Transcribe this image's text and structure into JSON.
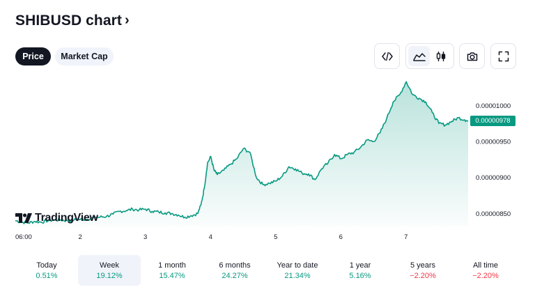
{
  "header": {
    "title": "SHIBUSD chart",
    "chevron_icon": "chevron-right-icon"
  },
  "tabs": [
    {
      "label": "Price",
      "active": true
    },
    {
      "label": "Market Cap",
      "active": false
    }
  ],
  "toolbar": {
    "embed_icon": "code-brackets-icon",
    "area_chart_icon": "area-chart-icon",
    "candles_icon": "candlestick-icon",
    "snapshot_icon": "camera-icon",
    "fullscreen_icon": "fullscreen-icon",
    "active_chart_style": "area"
  },
  "brand": {
    "name": "TradingView"
  },
  "colors": {
    "line": "#089981",
    "badge": "#089981",
    "positive": "#089981",
    "negative": "#f23645"
  },
  "chart_data": {
    "type": "area",
    "current_price_label": "0.00000978",
    "y_ticks": [
      "0.00001000",
      "0.00000950",
      "0.00000900",
      "0.00000850"
    ],
    "y_tick_values": [
      1e-05,
      9.5e-06,
      9e-06,
      8.5e-06
    ],
    "ylim": [
      8.32e-06,
      1.04e-05
    ],
    "x_ticks": [
      "06:00",
      "2",
      "3",
      "4",
      "5",
      "6",
      "7"
    ],
    "x_tick_values": [
      0.25,
      1,
      2,
      3,
      4,
      5,
      6
    ],
    "xlim": [
      0.0,
      6.95
    ],
    "series": [
      {
        "x": [
          0.0,
          0.1,
          0.2,
          0.3,
          0.4,
          0.5,
          0.6,
          0.7,
          0.8,
          0.9,
          1.0,
          1.1,
          1.2,
          1.3,
          1.4,
          1.5,
          1.6,
          1.7,
          1.8,
          1.9,
          2.0,
          2.1,
          2.2,
          2.3,
          2.4,
          2.5,
          2.6,
          2.7,
          2.8,
          2.85,
          2.9,
          2.95,
          3.0,
          3.05,
          3.1,
          3.2,
          3.3,
          3.4,
          3.5,
          3.6,
          3.7,
          3.8,
          3.9,
          4.0,
          4.1,
          4.2,
          4.3,
          4.4,
          4.5,
          4.6,
          4.7,
          4.8,
          4.9,
          5.0,
          5.1,
          5.2,
          5.3,
          5.4,
          5.5,
          5.6,
          5.7,
          5.8,
          5.9,
          6.0,
          6.1,
          6.2,
          6.3,
          6.4,
          6.5,
          6.6,
          6.7,
          6.8,
          6.9,
          6.95
        ],
        "values": [
          8.4e-06,
          8.38e-06,
          8.37e-06,
          8.39e-06,
          8.38e-06,
          8.4e-06,
          8.41e-06,
          8.41e-06,
          8.4e-06,
          8.41e-06,
          8.42e-06,
          8.42e-06,
          8.44e-06,
          8.45e-06,
          8.46e-06,
          8.49e-06,
          8.53e-06,
          8.54e-06,
          8.56e-06,
          8.55e-06,
          8.56e-06,
          8.53e-06,
          8.52e-06,
          8.51e-06,
          8.5e-06,
          8.48e-06,
          8.45e-06,
          8.47e-06,
          8.5e-06,
          8.62e-06,
          8.85e-06,
          9.2e-06,
          9.29e-06,
          9.1e-06,
          9.04e-06,
          9.1e-06,
          9.18e-06,
          9.26e-06,
          9.4e-06,
          9.35e-06,
          9e-06,
          8.9e-06,
          8.92e-06,
          8.95e-06,
          9.02e-06,
          9.15e-06,
          9.12e-06,
          9.06e-06,
          9.05e-06,
          8.97e-06,
          9.12e-06,
          9.2e-06,
          9.32e-06,
          9.26e-06,
          9.32e-06,
          9.35e-06,
          9.42e-06,
          9.52e-06,
          9.5e-06,
          9.62e-06,
          9.82e-06,
          1.005e-05,
          1.015e-05,
          1.033e-05,
          1.015e-05,
          1.01e-05,
          1.005e-05,
          9.9e-06,
          9.75e-06,
          9.73e-06,
          9.78e-06,
          9.83e-06,
          9.8e-06,
          9.78e-06
        ]
      }
    ],
    "grid": false,
    "legend": "none"
  },
  "periods": [
    {
      "label": "Today",
      "change": "0.51%",
      "sign": "positive",
      "active": false
    },
    {
      "label": "Week",
      "change": "19.12%",
      "sign": "positive",
      "active": true
    },
    {
      "label": "1 month",
      "change": "15.47%",
      "sign": "positive",
      "active": false
    },
    {
      "label": "6 months",
      "change": "24.27%",
      "sign": "positive",
      "active": false
    },
    {
      "label": "Year to date",
      "change": "21.34%",
      "sign": "positive",
      "active": false
    },
    {
      "label": "1 year",
      "change": "5.16%",
      "sign": "positive",
      "active": false
    },
    {
      "label": "5 years",
      "change": "−2.20%",
      "sign": "negative",
      "active": false
    },
    {
      "label": "All time",
      "change": "−2.20%",
      "sign": "negative",
      "active": false
    }
  ]
}
